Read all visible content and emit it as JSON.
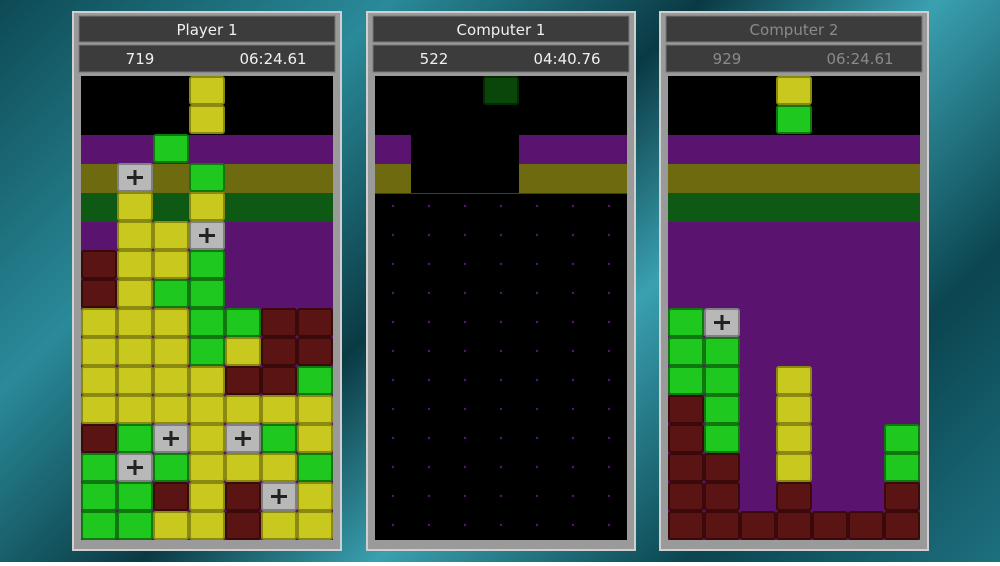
{
  "panels": [
    {
      "name": "Player 1",
      "score": 719,
      "time": "06:24.61"
    },
    {
      "name": "Computer 1",
      "score": 522,
      "time": "04:40.76"
    },
    {
      "name": "Computer 2",
      "score": 929,
      "time": "06:24.61"
    }
  ]
}
